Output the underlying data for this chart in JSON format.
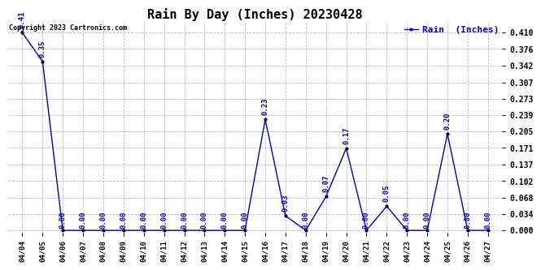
{
  "title": "Rain By Day (Inches) 20230428",
  "copyright_text": "Copyright 2023 Cartronics.com",
  "legend_label": "Rain  (Inches)",
  "x_labels": [
    "04/04",
    "04/05",
    "04/06",
    "04/07",
    "04/08",
    "04/09",
    "04/10",
    "04/11",
    "04/12",
    "04/13",
    "04/14",
    "04/15",
    "04/16",
    "04/17",
    "04/18",
    "04/19",
    "04/20",
    "04/21",
    "04/22",
    "04/23",
    "04/24",
    "04/25",
    "04/26",
    "04/27"
  ],
  "y_values": [
    0.41,
    0.35,
    0.0,
    0.0,
    0.0,
    0.0,
    0.0,
    0.0,
    0.0,
    0.0,
    0.0,
    0.0,
    0.23,
    0.03,
    0.0,
    0.07,
    0.17,
    0.0,
    0.05,
    0.0,
    0.0,
    0.2,
    0.0,
    0.0
  ],
  "line_color": "#0000bb",
  "marker_color": "#000000",
  "grid_color": "#bbbbbb",
  "background_color": "#ffffff",
  "title_fontsize": 11,
  "label_fontsize": 6.5,
  "annotation_fontsize": 6.5,
  "copyright_fontsize": 6,
  "legend_fontsize": 8,
  "y_ticks": [
    0.0,
    0.034,
    0.068,
    0.102,
    0.137,
    0.171,
    0.205,
    0.239,
    0.273,
    0.307,
    0.342,
    0.376,
    0.41
  ],
  "ylim": [
    -0.005,
    0.43
  ],
  "annotation_color": "#0000bb"
}
